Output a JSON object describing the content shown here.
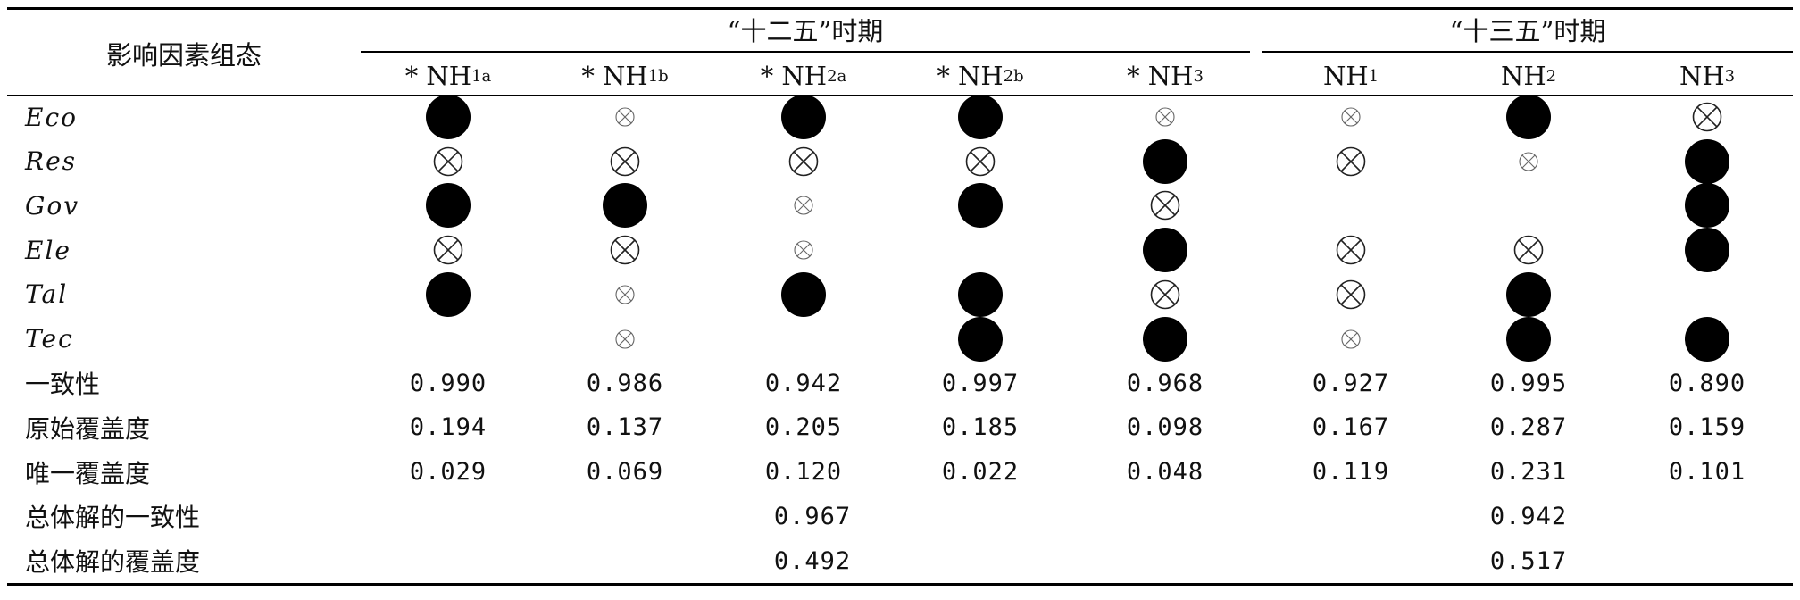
{
  "header": {
    "factor_label": "影响因素组态",
    "period_1": "“十二五”时期",
    "period_2": "“十三五”时期",
    "columns": [
      {
        "prefix": "* NH",
        "sub": "1a"
      },
      {
        "prefix": "* NH",
        "sub": "1b"
      },
      {
        "prefix": "* NH",
        "sub": "2a"
      },
      {
        "prefix": "* NH",
        "sub": "2b"
      },
      {
        "prefix": "* NH",
        "sub": "3"
      },
      {
        "prefix": "NH",
        "sub": "1"
      },
      {
        "prefix": "NH",
        "sub": "2"
      },
      {
        "prefix": "NH",
        "sub": "3"
      }
    ]
  },
  "legend_symbols": {
    "dot-big": "core condition present",
    "dot-small": "peripheral condition present",
    "x-big": "core condition absent",
    "x-small": "peripheral condition absent"
  },
  "factors": [
    {
      "name": "Eco",
      "cells": [
        "dot-small",
        "x-small",
        "dot-big",
        "dot-big",
        "x-small",
        "x-small",
        "dot-small",
        "x-big"
      ]
    },
    {
      "name": "Res",
      "cells": [
        "x-big",
        "x-big",
        "x-big",
        "x-big",
        "dot-small",
        "x-big",
        "x-small",
        "dot-small"
      ]
    },
    {
      "name": "Gov",
      "cells": [
        "dot-big",
        "dot-big",
        "x-small",
        "dot-small",
        "x-big",
        "",
        "",
        "dot-big"
      ]
    },
    {
      "name": "Ele",
      "cells": [
        "x-big",
        "x-big",
        "x-small",
        "",
        "dot-small",
        "x-big",
        "x-big",
        "dot-big"
      ]
    },
    {
      "name": "Tal",
      "cells": [
        "dot-small",
        "x-small",
        "dot-big",
        "dot-big",
        "x-big",
        "x-big",
        "dot-small",
        ""
      ]
    },
    {
      "name": "Tec",
      "cells": [
        "",
        "x-small",
        "",
        "dot-small",
        "dot-big",
        "x-small",
        "dot-big",
        "dot-small"
      ]
    }
  ],
  "metrics": [
    {
      "label": "一致性",
      "values": [
        "0.990",
        "0.986",
        "0.942",
        "0.997",
        "0.968",
        "0.927",
        "0.995",
        "0.890"
      ]
    },
    {
      "label": "原始覆盖度",
      "values": [
        "0.194",
        "0.137",
        "0.205",
        "0.185",
        "0.098",
        "0.167",
        "0.287",
        "0.159"
      ]
    },
    {
      "label": "唯一覆盖度",
      "values": [
        "0.029",
        "0.069",
        "0.120",
        "0.022",
        "0.048",
        "0.119",
        "0.231",
        "0.101"
      ]
    }
  ],
  "overall": [
    {
      "label": "总体解的一致性",
      "period_1": "0.967",
      "period_2": "0.942"
    },
    {
      "label": "总体解的覆盖度",
      "period_1": "0.492",
      "period_2": "0.517"
    }
  ]
}
